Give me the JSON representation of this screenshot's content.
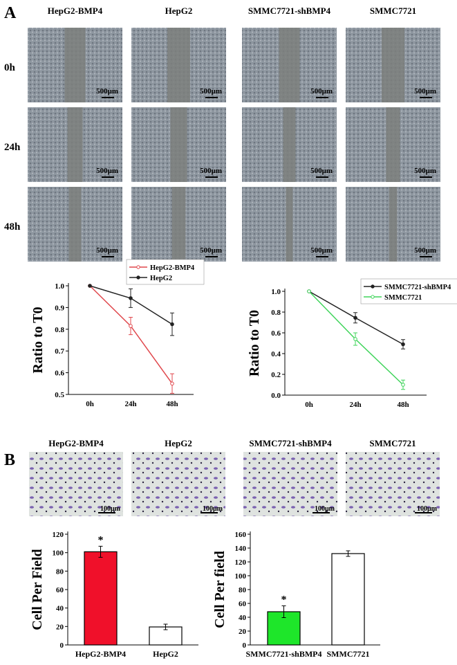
{
  "panel_a": {
    "label": "A",
    "columns": [
      "HepG2-BMP4",
      "HepG2",
      "SMMC7721-shBMP4",
      "SMMC7721"
    ],
    "rows": [
      "0h",
      "24h",
      "48h"
    ],
    "scale_bar": "500μm"
  },
  "panel_b": {
    "label": "B",
    "columns": [
      "HepG2-BMP4",
      "HepG2",
      "SMMC7721-shBMP4",
      "SMMC7721"
    ],
    "scale_bar": "100μm"
  },
  "chart_data": [
    {
      "type": "line",
      "x": [
        "0h",
        "24h",
        "48h"
      ],
      "ylabel": "Ratio to T0",
      "ylim": [
        0.5,
        1.0
      ],
      "yticks": [
        "0.5",
        "0.6",
        "0.7",
        "0.8",
        "0.9",
        "1.0"
      ],
      "legend": "top-right",
      "series": [
        {
          "name": "HepG2-BMP4",
          "color": "#e0474c",
          "marker": "open-circle",
          "values": [
            1.0,
            0.815,
            0.55
          ],
          "errors": [
            0,
            0.04,
            0.045
          ]
        },
        {
          "name": "HepG2",
          "color": "#222222",
          "marker": "filled-circle",
          "values": [
            1.0,
            0.943,
            0.823
          ],
          "errors": [
            0,
            0.043,
            0.052
          ]
        }
      ]
    },
    {
      "type": "line",
      "x": [
        "0h",
        "24h",
        "48h"
      ],
      "ylabel": "Ratio to T0",
      "ylim": [
        0.0,
        1.0
      ],
      "yticks": [
        "0.0",
        "0.2",
        "0.4",
        "0.6",
        "0.8",
        "1.0"
      ],
      "legend": "top-right",
      "series": [
        {
          "name": "SMMC7721-shBMP4",
          "color": "#222222",
          "marker": "filled-circle",
          "values": [
            1.0,
            0.745,
            0.49
          ],
          "errors": [
            0,
            0.05,
            0.045
          ]
        },
        {
          "name": "SMMC7721",
          "color": "#3fd45a",
          "marker": "open-circle",
          "values": [
            1.0,
            0.54,
            0.1
          ],
          "errors": [
            0,
            0.06,
            0.045
          ]
        }
      ]
    },
    {
      "type": "bar",
      "categories": [
        "HepG2-BMP4",
        "HepG2"
      ],
      "values": [
        101,
        19.5
      ],
      "errors": [
        6,
        3
      ],
      "colors": [
        "#f0102a",
        "#ffffff"
      ],
      "significance": [
        "*",
        ""
      ],
      "ylabel": "Cell Per Field",
      "ylim": [
        0,
        120
      ],
      "yticks": [
        "0",
        "20",
        "40",
        "60",
        "80",
        "100",
        "120"
      ]
    },
    {
      "type": "bar",
      "categories": [
        "SMMC7721-shBMP4",
        "SMMC7721"
      ],
      "values": [
        48,
        132
      ],
      "errors": [
        8.5,
        4
      ],
      "colors": [
        "#1ee62a",
        "#ffffff"
      ],
      "significance": [
        "*",
        ""
      ],
      "ylabel": "Cell Per field",
      "ylim": [
        0,
        160
      ],
      "yticks": [
        "0",
        "20",
        "40",
        "60",
        "80",
        "100",
        "120",
        "140",
        "160"
      ]
    }
  ]
}
